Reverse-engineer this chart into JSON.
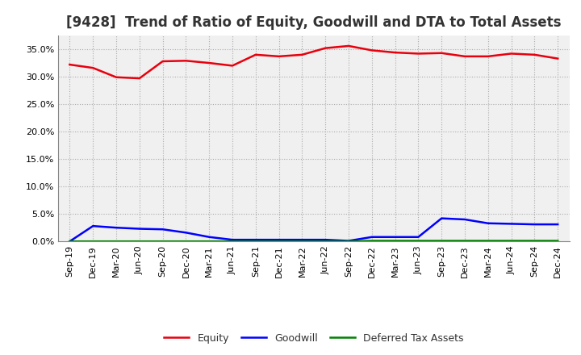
{
  "title": "[9428]  Trend of Ratio of Equity, Goodwill and DTA to Total Assets",
  "x_labels": [
    "Sep-19",
    "Dec-19",
    "Mar-20",
    "Jun-20",
    "Sep-20",
    "Dec-20",
    "Mar-21",
    "Jun-21",
    "Sep-21",
    "Dec-21",
    "Mar-22",
    "Jun-22",
    "Sep-22",
    "Dec-22",
    "Mar-23",
    "Jun-23",
    "Sep-23",
    "Dec-23",
    "Mar-24",
    "Jun-24",
    "Sep-24",
    "Dec-24"
  ],
  "equity": [
    0.322,
    0.316,
    0.299,
    0.297,
    0.328,
    0.329,
    0.325,
    0.32,
    0.34,
    0.337,
    0.34,
    0.352,
    0.356,
    0.348,
    0.344,
    0.342,
    0.343,
    0.337,
    0.337,
    0.342,
    0.34,
    0.333
  ],
  "goodwill": [
    0.0,
    0.028,
    0.025,
    0.023,
    0.022,
    0.016,
    0.008,
    0.003,
    0.003,
    0.003,
    0.003,
    0.003,
    0.001,
    0.008,
    0.008,
    0.008,
    0.042,
    0.04,
    0.033,
    0.032,
    0.031,
    0.031
  ],
  "dta": [
    0.0,
    0.0,
    0.0,
    0.0,
    0.0,
    0.0,
    0.0,
    0.0,
    0.0,
    0.0,
    0.0,
    0.0,
    0.0,
    0.001,
    0.001,
    0.001,
    0.001,
    0.001,
    0.001,
    0.001,
    0.001,
    0.001
  ],
  "equity_color": "#e8000d",
  "goodwill_color": "#0000ff",
  "dta_color": "#008000",
  "ylim": [
    0.0,
    0.375
  ],
  "yticks": [
    0.0,
    0.05,
    0.1,
    0.15,
    0.2,
    0.25,
    0.3,
    0.35
  ],
  "bg_color": "#ffffff",
  "plot_bg_color": "#f0f0f0",
  "grid_color": "#aaaaaa",
  "title_fontsize": 12,
  "tick_fontsize": 8,
  "legend_fontsize": 9,
  "line_width": 1.8
}
